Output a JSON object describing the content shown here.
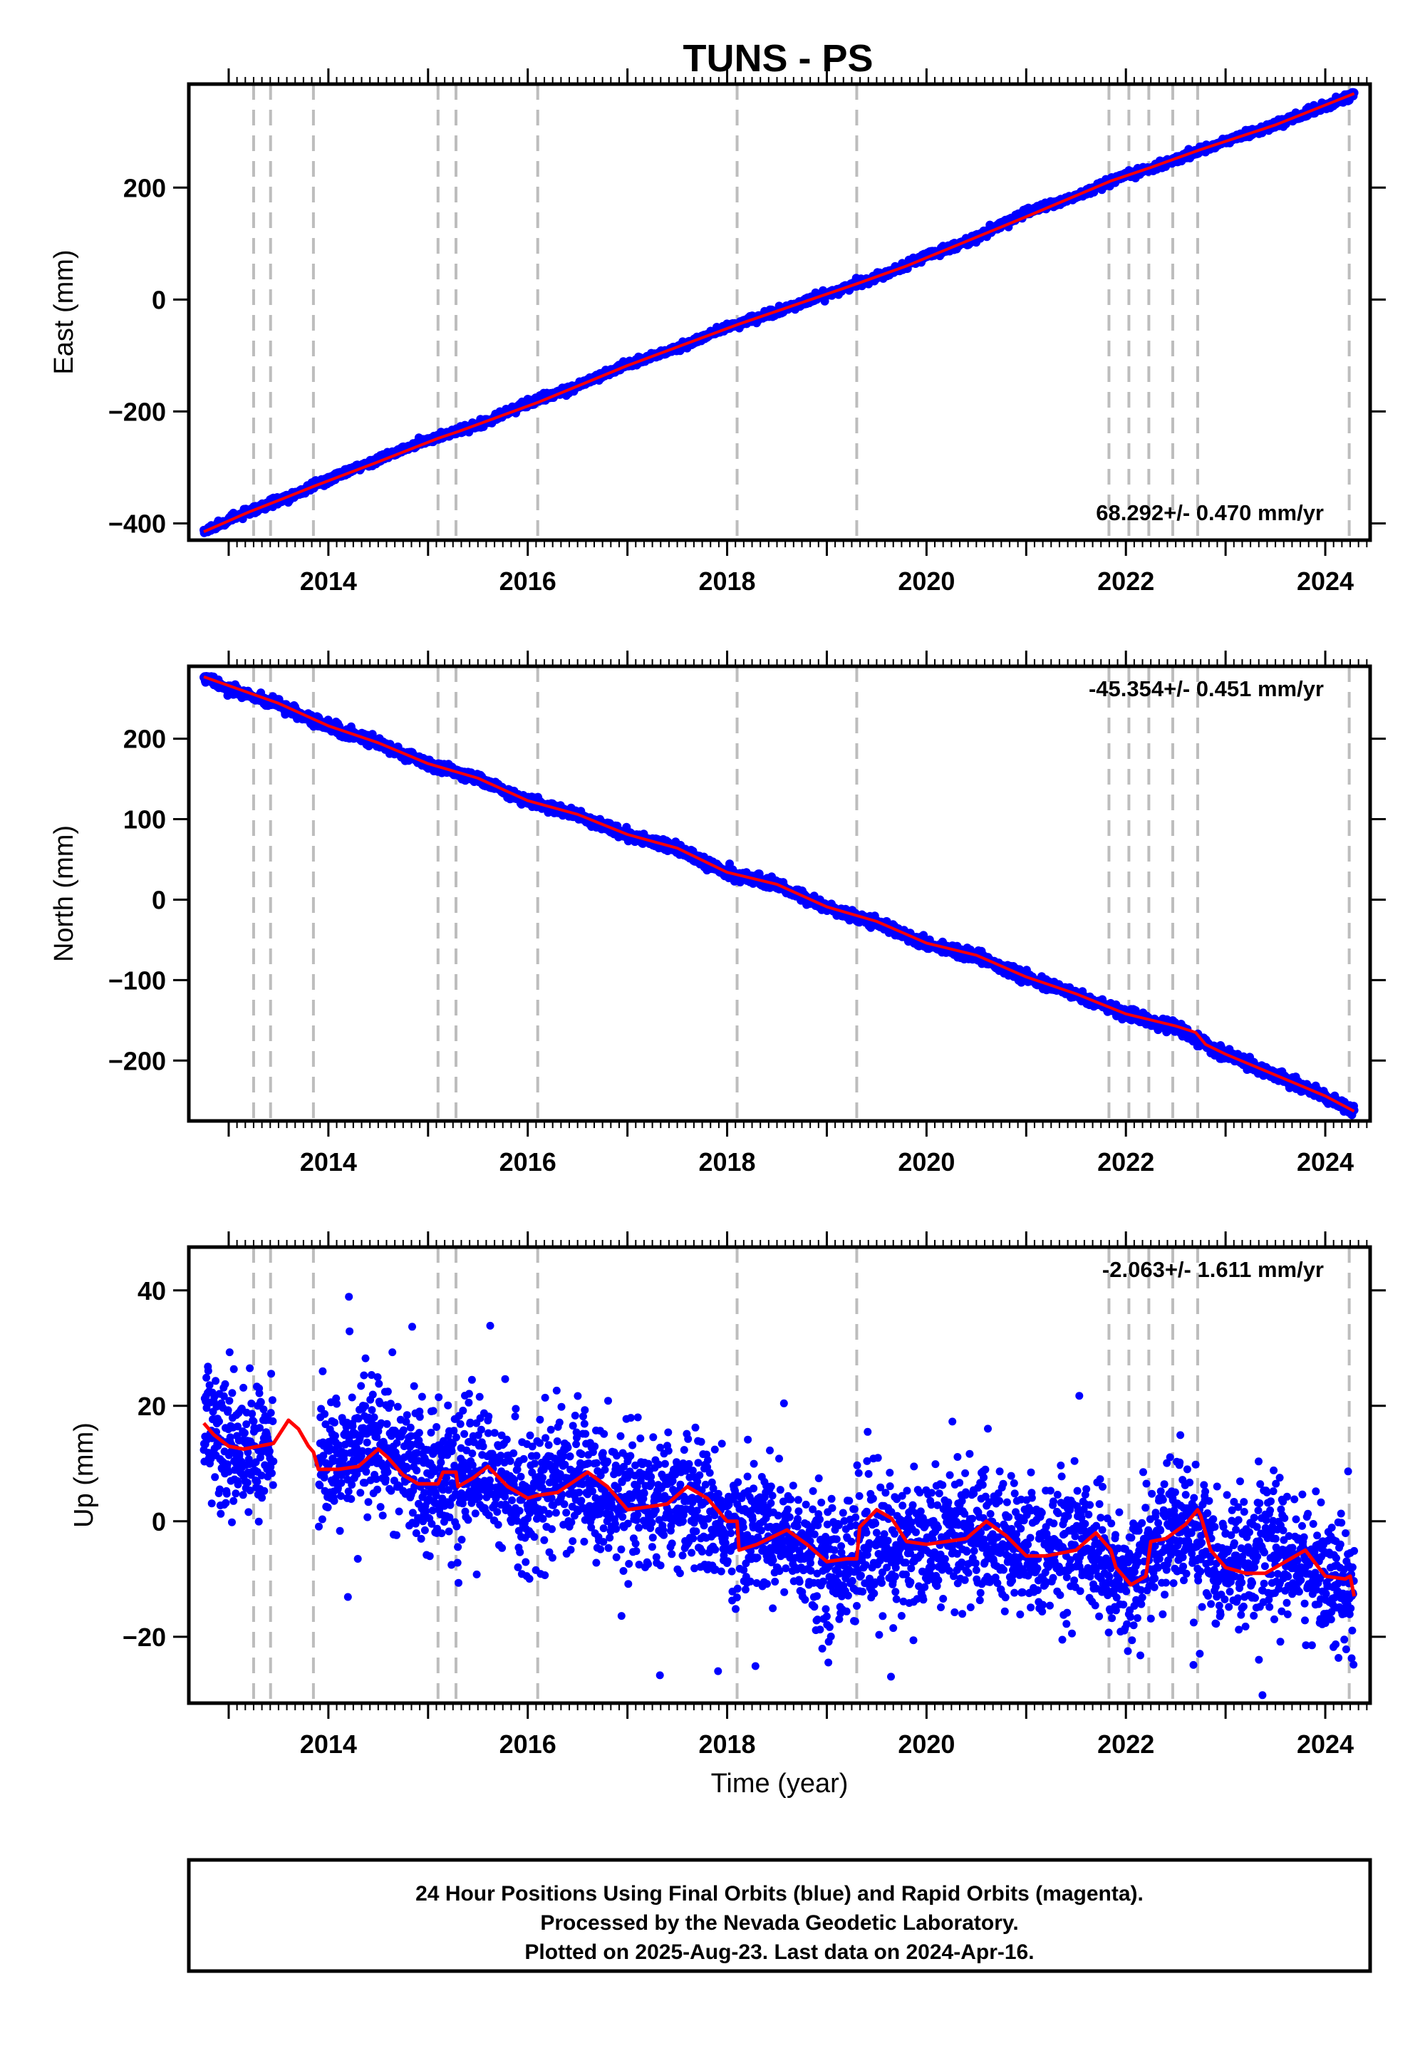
{
  "title": "TUNS - PS",
  "x_axis": {
    "label": "Time (year)",
    "range": [
      2012.6,
      2024.45
    ],
    "major_ticks": [
      2014,
      2016,
      2018,
      2020,
      2022,
      2024
    ],
    "tick_labels": [
      "2014",
      "2016",
      "2018",
      "2020",
      "2022",
      "2024"
    ]
  },
  "chart_data": [
    {
      "type": "scatter",
      "panel": "east",
      "ylabel": "East (mm)",
      "ylim": [
        -430,
        385
      ],
      "y_ticks": [
        -400,
        -200,
        0,
        200
      ],
      "y_tick_labels": [
        "−400",
        "−200",
        "0",
        "200"
      ],
      "rate_text": "68.292+/- 0.470 mm/yr",
      "rate_placement": "bottom-right",
      "series": [
        {
          "name": "24 Hour Positions (Final Orbits)",
          "color": "#0000ff",
          "x": [
            2012.75,
            2013.0,
            2013.5,
            2014.0,
            2014.5,
            2015.0,
            2015.5,
            2016.0,
            2016.5,
            2017.0,
            2017.5,
            2018.0,
            2018.5,
            2019.0,
            2019.5,
            2020.0,
            2020.5,
            2021.0,
            2021.5,
            2022.0,
            2022.5,
            2023.0,
            2023.5,
            2024.0,
            2024.29
          ],
          "y": [
            -415,
            -393,
            -361,
            -321,
            -286,
            -251,
            -224,
            -185,
            -154,
            -116,
            -87,
            -50,
            -22,
            10,
            40,
            78,
            110,
            156,
            184,
            221,
            250,
            283,
            312,
            346,
            368
          ]
        },
        {
          "name": "Model fit",
          "color": "#ff0000",
          "fit": true,
          "x": [
            2012.75,
            2013.2,
            2013.6,
            2013.85,
            2014.5,
            2015.1,
            2015.3,
            2016.1,
            2017.0,
            2018.1,
            2019.3,
            2019.8,
            2021.0,
            2021.85,
            2022.25,
            2022.5,
            2022.75,
            2023.5,
            2024.29
          ],
          "y": [
            -415,
            -380,
            -352,
            -334,
            -290,
            -248,
            -236,
            -184,
            -118,
            -45,
            28,
            60,
            148,
            212,
            236,
            252,
            268,
            312,
            368
          ]
        }
      ]
    },
    {
      "type": "scatter",
      "panel": "north",
      "ylabel": "North (mm)",
      "ylim": [
        -275,
        290
      ],
      "y_ticks": [
        -200,
        -100,
        0,
        100,
        200
      ],
      "y_tick_labels": [
        "−200",
        "−100",
        "0",
        "100",
        "200"
      ],
      "rate_text": "-45.354+/- 0.451 mm/yr",
      "rate_placement": "top-right",
      "series": [
        {
          "name": "24 Hour Positions (Final Orbits)",
          "color": "#0000ff",
          "x": [
            2012.75,
            2013.0,
            2013.5,
            2014.0,
            2014.5,
            2015.0,
            2015.5,
            2016.0,
            2016.5,
            2017.0,
            2017.5,
            2018.0,
            2018.5,
            2019.0,
            2019.5,
            2020.0,
            2020.5,
            2021.0,
            2021.5,
            2022.0,
            2022.5,
            2022.75,
            2023.0,
            2023.5,
            2024.0,
            2024.29
          ],
          "y": [
            277,
            262,
            242,
            215,
            195,
            168,
            150,
            122,
            105,
            80,
            63,
            33,
            18,
            -10,
            -28,
            -55,
            -70,
            -97,
            -118,
            -143,
            -158,
            -178,
            -192,
            -218,
            -245,
            -263
          ]
        },
        {
          "name": "Model fit",
          "color": "#ff0000",
          "fit": true,
          "x": [
            2012.75,
            2013.5,
            2014.0,
            2014.5,
            2015.0,
            2015.5,
            2016.0,
            2016.5,
            2017.0,
            2017.5,
            2018.0,
            2018.5,
            2019.0,
            2019.5,
            2020.0,
            2020.5,
            2021.0,
            2021.5,
            2022.0,
            2022.5,
            2022.7,
            2022.8,
            2023.0,
            2023.5,
            2024.0,
            2024.29
          ],
          "y": [
            277,
            244,
            216,
            195,
            169,
            151,
            123,
            106,
            81,
            64,
            34,
            19,
            -9,
            -27,
            -54,
            -69,
            -96,
            -117,
            -142,
            -157,
            -165,
            -180,
            -192,
            -218,
            -244,
            -263
          ]
        }
      ]
    },
    {
      "type": "scatter",
      "panel": "up",
      "ylabel": "Up (mm)",
      "ylim": [
        -31.5,
        47.5
      ],
      "y_ticks": [
        -20,
        0,
        20,
        40
      ],
      "y_tick_labels": [
        "−20",
        "0",
        "20",
        "40"
      ],
      "rate_text": "-2.063+/- 1.611 mm/yr",
      "rate_placement": "top-right",
      "series": [
        {
          "name": "24 Hour Positions (Final Orbits)",
          "color": "#0000ff",
          "scatter_sd_mm": 5.5,
          "x": [
            2012.75,
            2013.0,
            2013.5,
            2014.0,
            2014.5,
            2015.0,
            2015.5,
            2016.0,
            2016.5,
            2017.0,
            2017.5,
            2018.0,
            2018.5,
            2019.0,
            2019.5,
            2020.0,
            2020.5,
            2021.0,
            2021.5,
            2022.0,
            2022.5,
            2023.0,
            2023.5,
            2024.0,
            2024.29
          ],
          "y": [
            17,
            12,
            13,
            10,
            14,
            6,
            9,
            4,
            8,
            2,
            5,
            -1,
            -2,
            -8,
            -5,
            -4,
            -1,
            -6,
            -3,
            -11,
            1,
            -8,
            -5,
            -10,
            -12
          ]
        },
        {
          "name": "Model fit",
          "color": "#ff0000",
          "fit": true,
          "x": [
            2012.75,
            2012.85,
            2013.0,
            2013.15,
            2013.3,
            2013.45,
            2013.6,
            2013.7,
            2013.8,
            2013.85,
            2013.9,
            2014.1,
            2014.3,
            2014.5,
            2014.6,
            2014.75,
            2014.9,
            2015.05,
            2015.1,
            2015.15,
            2015.28,
            2015.3,
            2015.45,
            2015.6,
            2015.8,
            2016.0,
            2016.1,
            2016.3,
            2016.6,
            2016.8,
            2017.0,
            2017.2,
            2017.4,
            2017.6,
            2017.8,
            2018.0,
            2018.1,
            2018.12,
            2018.3,
            2018.6,
            2018.8,
            2019.0,
            2019.2,
            2019.3,
            2019.33,
            2019.5,
            2019.65,
            2019.8,
            2020.0,
            2020.2,
            2020.4,
            2020.6,
            2020.8,
            2021.0,
            2021.2,
            2021.5,
            2021.7,
            2021.85,
            2021.9,
            2022.05,
            2022.2,
            2022.25,
            2022.4,
            2022.6,
            2022.72,
            2022.75,
            2022.85,
            2023.0,
            2023.2,
            2023.4,
            2023.6,
            2023.8,
            2024.0,
            2024.2,
            2024.25,
            2024.29
          ],
          "y": [
            17,
            15,
            13,
            12.5,
            13,
            13.5,
            17.5,
            16,
            13,
            12,
            9,
            9,
            9.5,
            12.5,
            11,
            8,
            6.5,
            6.5,
            6.5,
            8.5,
            8.5,
            6,
            7.5,
            9.5,
            6,
            4,
            4.5,
            5,
            8.5,
            6,
            2,
            2.5,
            3,
            6,
            4,
            0,
            0,
            -5,
            -4,
            -1.5,
            -4,
            -7,
            -6.5,
            -6.5,
            -1,
            2,
            0.5,
            -3.5,
            -4,
            -3.5,
            -3,
            0,
            -2.5,
            -6,
            -6,
            -5,
            -2,
            -5,
            -8,
            -11,
            -9.5,
            -3.5,
            -3,
            -0.5,
            2,
            1,
            -5,
            -8,
            -9,
            -9,
            -7,
            -5,
            -9.5,
            -10,
            -9.5,
            -13
          ]
        }
      ]
    }
  ],
  "offset_lines": {
    "style": "dashed",
    "color": "#bdbdbd",
    "x": [
      2013.25,
      2013.42,
      2013.85,
      2015.1,
      2015.28,
      2016.1,
      2018.1,
      2019.3,
      2021.83,
      2022.03,
      2022.23,
      2022.47,
      2022.72,
      2024.24
    ]
  },
  "footer": {
    "lines": [
      "24 Hour Positions Using Final Orbits (blue) and Rapid Orbits (magenta).",
      "Processed by the Nevada Geodetic Laboratory.",
      "Plotted on 2025-Aug-23. Last data on 2024-Apr-16."
    ]
  }
}
